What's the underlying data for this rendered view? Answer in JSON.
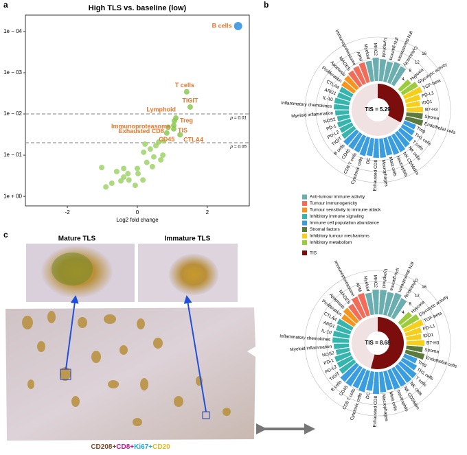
{
  "panel_labels": [
    "a",
    "b",
    "c"
  ],
  "chart_data": [
    {
      "type": "scatter",
      "title": "High TLS vs. baseline (low)",
      "xlabel": "Log2 fold change",
      "ylog": true,
      "xlim": [
        -3.2,
        3.2
      ],
      "xticks": [
        -2,
        0,
        2
      ],
      "ylim": [
        1.7,
        4e-05
      ],
      "yticks": [
        {
          "value": 0.0001,
          "label": "1e − 04"
        },
        {
          "value": 0.001,
          "label": "1e − 03"
        },
        {
          "value": 0.01,
          "label": "1e − 02"
        },
        {
          "value": 0.1,
          "label": "1e − 01"
        },
        {
          "value": 1,
          "label": "1e + 00"
        }
      ],
      "hlines": [
        {
          "value": 0.01,
          "label": "p = 0.01"
        },
        {
          "value": 0.05,
          "label": "p = 0.05"
        }
      ],
      "x": [
        2.88,
        1.41,
        1.51,
        1.1,
        1.06,
        1.04,
        0.84,
        1.04,
        0.88,
        1.22,
        0.75,
        0.53,
        0.61,
        0.37,
        0.18,
        0.73,
        0.67,
        0.43,
        0.27,
        0.47,
        0,
        0.02,
        -0.27,
        -0.59,
        -0.39,
        -0.47,
        -0.9,
        -0.73,
        -0.24,
        -0.06,
        0.16,
        -1.02,
        -0.39,
        0.22
      ],
      "values": [
        7.4e-05,
        0.0029,
        0.0068,
        0.0126,
        0.0147,
        0.019,
        0.029,
        0.023,
        0.021,
        0.032,
        0.045,
        0.059,
        0.048,
        0.071,
        0.085,
        0.1,
        0.13,
        0.19,
        0.15,
        0.11,
        0.21,
        0.28,
        0.28,
        0.25,
        0.34,
        0.42,
        0.59,
        0.48,
        0.4,
        0.54,
        0.4,
        0.2,
        0.21,
        0.054
      ],
      "point_labels": [
        "B cells",
        "T cells",
        "TIGIT",
        "Lymphoid",
        "Treg",
        "Immunoproteasome",
        "CD45",
        "TIS",
        "Exhausted CD8",
        "CTLA4",
        null,
        null,
        null,
        null,
        null,
        null,
        null,
        null,
        null,
        null,
        null,
        null,
        null,
        null,
        null,
        null,
        null,
        null,
        null,
        null,
        null,
        null,
        null,
        null
      ],
      "colors": [
        "#2f8fe0",
        "#8cc850",
        "#8cc850",
        "#8cc850",
        "#8cc850",
        "#8cc850",
        "#8cc850",
        "#8cc850",
        "#8cc850",
        "#8cc850",
        "#9fd468",
        "#9fd468",
        "#9fd468",
        "#9fd468",
        "#9fd468",
        "#9fd468",
        "#9fd468",
        "#9fd468",
        "#9fd468",
        "#9fd468",
        "#9fd468",
        "#9fd468",
        "#9fd468",
        "#9fd468",
        "#9fd468",
        "#9fd468",
        "#9fd468",
        "#9fd468",
        "#9fd468",
        "#9fd468",
        "#9fd468",
        "#9fd468",
        "#9fd468",
        "#9fd468"
      ],
      "label_color": "#e8762c"
    },
    {
      "type": "radial",
      "ylim": [
        0,
        16
      ],
      "yticks": [
        4,
        8,
        12,
        16
      ],
      "categories": [
        "Hypoxia",
        "Glycolytic activity",
        "TGF-beta",
        "PD-L1",
        "IDO1",
        "B7-H3",
        "Stroma",
        "Endothelial cells",
        "Treg",
        "TH1 cells",
        "T cells",
        "NK cells",
        "NK CD56dim",
        "Neutrophils",
        "Mast cells",
        "Macrophages",
        "Exhausted CD8",
        "DC",
        "Cytotoxic cells",
        "CD8 T cells",
        "CD45",
        "B cells",
        "TIGIT",
        "PD-L2",
        "PD-1",
        "NOS2",
        "Myeloid inflammation",
        "Inflammatory chemokines",
        "IL-10",
        "ARG1",
        "CTLA4",
        "Proliferation",
        "Apoptosis",
        "MAGES",
        "Immunoproteasome",
        "APM",
        "Myeloid",
        "MHC2",
        "Lymphoid",
        "IFN-gamma",
        "IFN downstream",
        "Cytotoxicity"
      ],
      "values": [
        5,
        6.5,
        7,
        5.5,
        5,
        6,
        6,
        6.5,
        4.5,
        5,
        6,
        6.5,
        7,
        7,
        6.5,
        7,
        7,
        6.5,
        7,
        6.5,
        6.5,
        6.5,
        5.5,
        5,
        5,
        4.5,
        5,
        5.5,
        5.5,
        5,
        5,
        5.5,
        6,
        6.5,
        7,
        7.5,
        7.5,
        8.5,
        8,
        7.5,
        8,
        7.5
      ],
      "colors": [
        "#9ccc3c",
        "#9ccc3c",
        "#f5cf1a",
        "#f5cf1a",
        "#f5cf1a",
        "#f5cf1a",
        "#5c7a3c",
        "#5c7a3c",
        "#3a9de0",
        "#3a9de0",
        "#3a9de0",
        "#3a9de0",
        "#3a9de0",
        "#3a9de0",
        "#3a9de0",
        "#3a9de0",
        "#3a9de0",
        "#3a9de0",
        "#3a9de0",
        "#3a9de0",
        "#3a9de0",
        "#3a9de0",
        "#36b5ae",
        "#36b5ae",
        "#36b5ae",
        "#36b5ae",
        "#36b5ae",
        "#36b5ae",
        "#36b5ae",
        "#36b5ae",
        "#36b5ae",
        "#f7941d",
        "#f7941d",
        "#f26c5a",
        "#f26c5a",
        "#f26c5a",
        "#6aaeb0",
        "#6aaeb0",
        "#6aaeb0",
        "#6aaeb0",
        "#6aaeb0",
        "#6aaeb0"
      ],
      "center": {
        "name": "TIS",
        "values": [
          5.29
        ],
        "value_labels": [
          "TIS = 5.29"
        ],
        "color": "#7b0d0d"
      }
    },
    {
      "type": "radial",
      "ylim": [
        0,
        16
      ],
      "yticks": [
        4,
        8,
        12,
        16
      ],
      "categories": [
        "Hypoxia",
        "Glycolytic activity",
        "TGF-beta",
        "PD-L1",
        "IDO1",
        "B7-H3",
        "Stroma",
        "Endothelial cells",
        "Treg",
        "TH1 cells",
        "T cells",
        "NK cells",
        "NK CD56dim",
        "Neutrophils",
        "Mast cells",
        "Macrophages",
        "Exhausted CD8",
        "DC",
        "Cytotoxic cells",
        "CD8 T cells",
        "CD45",
        "B cells",
        "TIGIT",
        "PD-L2",
        "PD-1",
        "NOS2",
        "Myeloid inflammation",
        "Inflammatory chemokines",
        "IL-10",
        "ARG1",
        "CTLA4",
        "Proliferation",
        "Apoptosis",
        "MAGES",
        "Immunoproteasome",
        "APM",
        "Myeloid",
        "MHC2",
        "Lymphoid",
        "IFN-gamma",
        "IFN downstream",
        "Cytotoxicity"
      ],
      "values": [
        5.5,
        7,
        7.5,
        6,
        5.5,
        6.5,
        6,
        7,
        5,
        6,
        7.5,
        7.5,
        7.5,
        7.5,
        7,
        7.5,
        8,
        7,
        8,
        7.5,
        8,
        8,
        6.5,
        6,
        6,
        5,
        5.5,
        6,
        6,
        5.5,
        6,
        5.5,
        6.5,
        6.5,
        8,
        8.5,
        8,
        9,
        9,
        8.5,
        9,
        8
      ],
      "colors": [
        "#9ccc3c",
        "#9ccc3c",
        "#f5cf1a",
        "#f5cf1a",
        "#f5cf1a",
        "#f5cf1a",
        "#5c7a3c",
        "#5c7a3c",
        "#3a9de0",
        "#3a9de0",
        "#3a9de0",
        "#3a9de0",
        "#3a9de0",
        "#3a9de0",
        "#3a9de0",
        "#3a9de0",
        "#3a9de0",
        "#3a9de0",
        "#3a9de0",
        "#3a9de0",
        "#3a9de0",
        "#3a9de0",
        "#36b5ae",
        "#36b5ae",
        "#36b5ae",
        "#36b5ae",
        "#36b5ae",
        "#36b5ae",
        "#36b5ae",
        "#36b5ae",
        "#36b5ae",
        "#f7941d",
        "#f7941d",
        "#f26c5a",
        "#f26c5a",
        "#f26c5a",
        "#6aaeb0",
        "#6aaeb0",
        "#6aaeb0",
        "#6aaeb0",
        "#6aaeb0",
        "#6aaeb0"
      ],
      "center": {
        "name": "TIS",
        "values": [
          8.68
        ],
        "value_labels": [
          "TIS = 8.68"
        ],
        "color": "#7b0d0d"
      }
    }
  ],
  "legend": [
    {
      "name": "Anti-tumour immune activity",
      "color": "#6aaeb0"
    },
    {
      "name": "Tumour immunogenicity",
      "color": "#f26c5a"
    },
    {
      "name": "Tumour sensitivity to immune attack",
      "color": "#f7941d"
    },
    {
      "name": "Inhibitory immune signaling",
      "color": "#36b5ae"
    },
    {
      "name": "Immune cell population abundance",
      "color": "#3a9de0"
    },
    {
      "name": "Stromal factors",
      "color": "#5c7a3c"
    },
    {
      "name": "Inhibitory tumour mechanisms",
      "color": "#f5cf1a"
    },
    {
      "name": "Inhibitory metabolism",
      "color": "#9ccc3c"
    }
  ],
  "images": {
    "mature": "Mature TLS",
    "immature": "Immature TLS"
  },
  "stain": [
    {
      "text": "CD208+",
      "color": "#7a4a2a"
    },
    {
      "text": "CD8+",
      "color": "#c0189a"
    },
    {
      "text": "Ki67+",
      "color": "#1aa8d8"
    },
    {
      "text": "CD20",
      "color": "#e8b820"
    }
  ]
}
